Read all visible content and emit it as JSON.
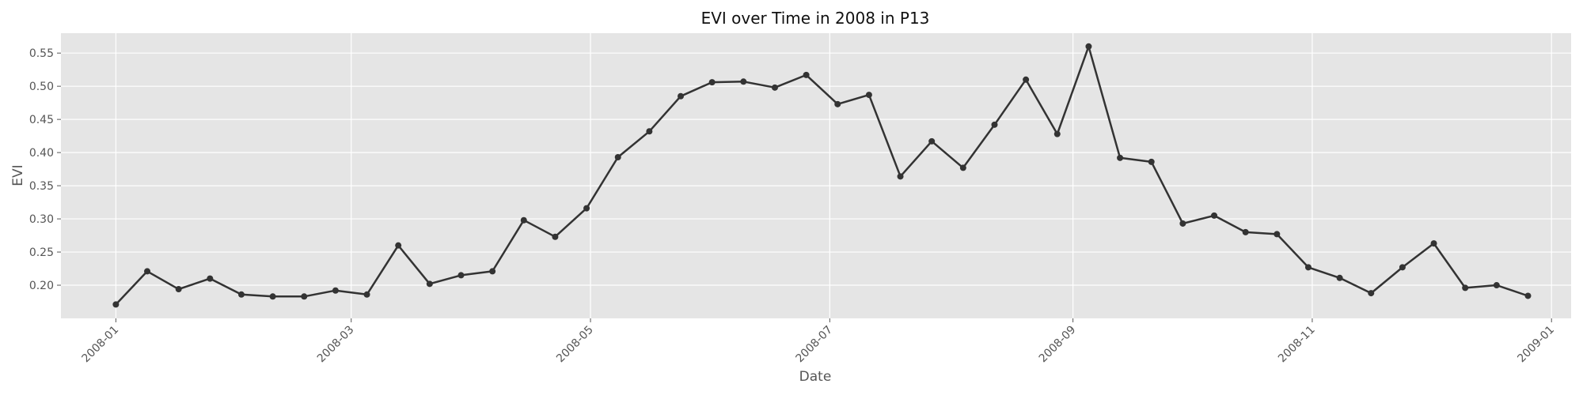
{
  "chart_data": {
    "type": "line",
    "title": "EVI over Time in 2008 in P13",
    "xlabel": "Date",
    "ylabel": "EVI",
    "xlim": [
      "2007-12-18",
      "2009-01-06"
    ],
    "ylim": [
      0.15,
      0.58
    ],
    "x_ticks": [
      {
        "date": "2008-01-01",
        "label": "2008-01"
      },
      {
        "date": "2008-03-01",
        "label": "2008-03"
      },
      {
        "date": "2008-05-01",
        "label": "2008-05"
      },
      {
        "date": "2008-07-01",
        "label": "2008-07"
      },
      {
        "date": "2008-09-01",
        "label": "2008-09"
      },
      {
        "date": "2008-11-01",
        "label": "2008-11"
      },
      {
        "date": "2009-01-01",
        "label": "2009-01"
      }
    ],
    "y_ticks": [
      "0.20",
      "0.25",
      "0.30",
      "0.35",
      "0.40",
      "0.45",
      "0.50",
      "0.55"
    ],
    "grid": true,
    "legend": "none",
    "colors": {
      "line": "#333333",
      "marker": "#333333",
      "plot_background": "#e5e5e5",
      "grid": "#ffffff"
    },
    "series": [
      {
        "x": [
          "2008-01-01",
          "2008-01-09",
          "2008-01-17",
          "2008-01-25",
          "2008-02-02",
          "2008-02-10",
          "2008-02-18",
          "2008-02-26",
          "2008-03-05",
          "2008-03-13",
          "2008-03-21",
          "2008-03-29",
          "2008-04-06",
          "2008-04-14",
          "2008-04-22",
          "2008-04-30",
          "2008-05-08",
          "2008-05-16",
          "2008-05-24",
          "2008-06-01",
          "2008-06-09",
          "2008-06-17",
          "2008-06-25",
          "2008-07-03",
          "2008-07-11",
          "2008-07-19",
          "2008-07-27",
          "2008-08-04",
          "2008-08-12",
          "2008-08-20",
          "2008-08-28",
          "2008-09-05",
          "2008-09-13",
          "2008-09-21",
          "2008-09-29",
          "2008-10-07",
          "2008-10-15",
          "2008-10-23",
          "2008-10-31",
          "2008-11-08",
          "2008-11-16",
          "2008-11-24",
          "2008-12-02",
          "2008-12-10",
          "2008-12-18",
          "2008-12-26"
        ],
        "values": [
          0.171,
          0.221,
          0.194,
          0.21,
          0.186,
          0.183,
          0.183,
          0.192,
          0.186,
          0.26,
          0.202,
          0.215,
          0.221,
          0.298,
          0.273,
          0.316,
          0.393,
          0.432,
          0.485,
          0.506,
          0.507,
          0.498,
          0.517,
          0.473,
          0.487,
          0.364,
          0.417,
          0.377,
          0.442,
          0.51,
          0.428,
          0.56,
          0.392,
          0.386,
          0.293,
          0.305,
          0.28,
          0.277,
          0.227,
          0.211,
          0.188,
          0.227,
          0.263,
          0.196,
          0.2,
          0.184
        ]
      }
    ]
  }
}
